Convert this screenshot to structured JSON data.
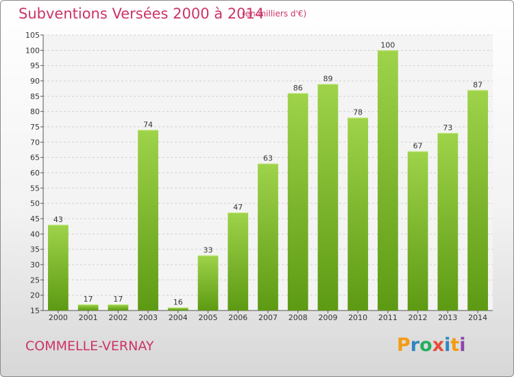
{
  "header": {
    "title": "Subventions Versées 2000 à 2014",
    "subtitle": "(en milliers d'€)"
  },
  "footer": {
    "commune": "COMMELLE-VERNAY",
    "logo_parts": [
      "P",
      "r",
      "o",
      "x",
      "i",
      "t",
      "i"
    ],
    "logo_colors": [
      "#f39c12",
      "#2e86c1",
      "#27ae60",
      "#e74c3c",
      "#2e86c1",
      "#f39c12",
      "#8e44ad"
    ]
  },
  "colors": {
    "bar_light": "#9ed34a",
    "bar_dark": "#5d9a13",
    "accent": "#cc3366"
  },
  "chart_data": {
    "type": "bar",
    "categories": [
      "2000",
      "2001",
      "2002",
      "2003",
      "2004",
      "2005",
      "2006",
      "2007",
      "2008",
      "2009",
      "2010",
      "2011",
      "2012",
      "2013",
      "2014"
    ],
    "values": [
      43,
      17,
      17,
      74,
      16,
      33,
      47,
      63,
      86,
      89,
      78,
      100,
      67,
      73,
      87
    ],
    "yticks": [
      15,
      20,
      25,
      30,
      35,
      40,
      45,
      50,
      55,
      60,
      65,
      70,
      75,
      80,
      85,
      90,
      95,
      100,
      105
    ],
    "ylim": [
      15,
      105
    ],
    "grid": true,
    "legend": "none"
  }
}
